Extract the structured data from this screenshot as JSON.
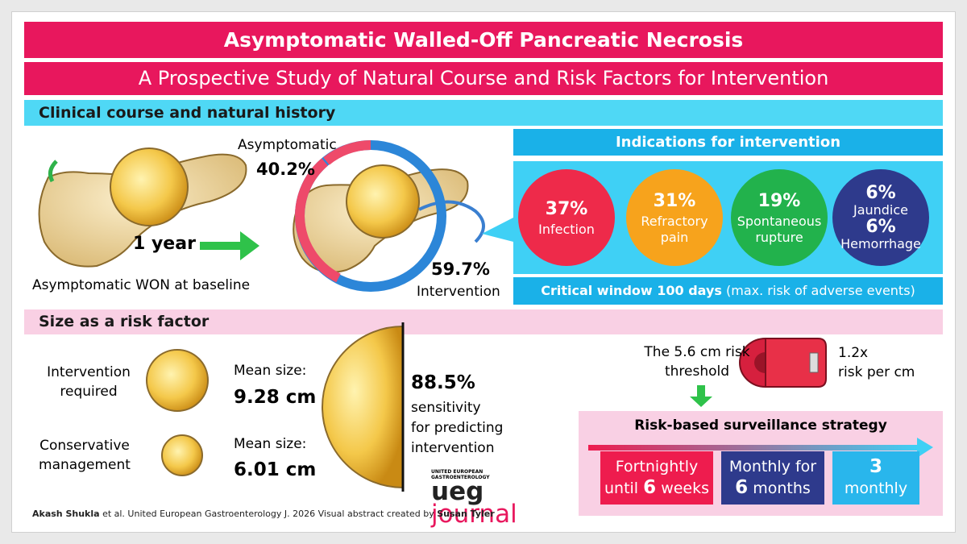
{
  "header": {
    "title": "Asymptomatic Walled-Off Pancreatic Necrosis",
    "subtitle": "A Prospective Study of Natural Course and Risk Factors for Intervention"
  },
  "clinical_course": {
    "heading": "Clinical course and natural history",
    "duration": "1 year",
    "baseline_label": "Asymptomatic WON at baseline",
    "asymptomatic_label": "Asymptomatic",
    "asymptomatic_percent": "40.2%",
    "intervention_percent": "59.7%",
    "intervention_label": "Intervention"
  },
  "indications": {
    "heading": "Indications for intervention",
    "items": [
      {
        "percent": "37%",
        "label": "Infection"
      },
      {
        "percent": "31%",
        "label": "Refractory pain"
      },
      {
        "percent": "19%",
        "label": "Spontaneous rupture"
      }
    ],
    "combined": [
      {
        "percent": "6%",
        "label": "Jaundice"
      },
      {
        "percent": "6%",
        "label": "Hemorrhage"
      }
    ],
    "window": {
      "bold": "Critical window 100 days",
      "note": "(max. risk of adverse events)"
    }
  },
  "size": {
    "heading": "Size as a risk factor",
    "groups": [
      {
        "label": "Intervention required",
        "size_label": "Mean size:",
        "size": "9.28 cm"
      },
      {
        "label": "Conservative management",
        "size_label": "Mean size:",
        "size": "6.01 cm"
      }
    ],
    "sensitivity": {
      "percent": "88.5%",
      "lines": [
        "sensitivity",
        "for predicting",
        "intervention"
      ]
    },
    "threshold": "The 5.6 cm risk threshold",
    "risk_ratio": "1.2x",
    "risk_unit": "risk per cm"
  },
  "surveillance": {
    "heading": "Risk-based surveillance strategy",
    "steps": [
      {
        "top": "Fortnightly",
        "pre": "until",
        "bold": "6",
        "post": "weeks"
      },
      {
        "top": "Monthly for",
        "pre": "",
        "bold": "6",
        "post": "months"
      },
      {
        "top": "3",
        "pre": "",
        "bold": "",
        "post": "monthly"
      }
    ]
  },
  "logo": {
    "small": "UNITED EUROPEAN GASTROENTEROLOGY",
    "ueg": "ueg",
    "journal": "journal"
  },
  "footer": {
    "author": "Akash Shukla",
    "citation": "et al. United European Gastroenterology J. 2026 Visual abstract created by",
    "illustrator": "Susan Tyler"
  }
}
